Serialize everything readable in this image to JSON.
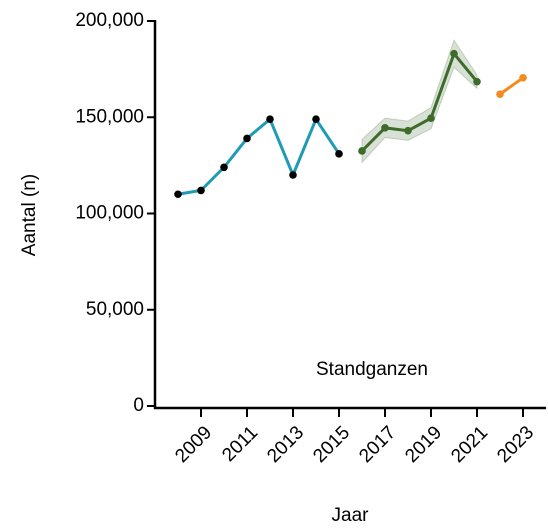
{
  "chart_data": {
    "type": "line",
    "xlabel": "Jaar",
    "ylabel": "Aantal (n)",
    "annotation": "Standganzen",
    "xlim": [
      2007,
      2024
    ],
    "xticks": [
      2009,
      2011,
      2013,
      2015,
      2017,
      2019,
      2021,
      2023
    ],
    "ylim": [
      0,
      200000
    ],
    "yticks": [
      0,
      {
        "value": 50000,
        "label": "50,000"
      },
      {
        "value": 100000,
        "label": "100,000"
      },
      {
        "value": 150000,
        "label": "150,000"
      },
      {
        "value": 200000,
        "label": "200,000"
      }
    ],
    "series": [
      {
        "color": "#1f9bb3",
        "marker_color": "#000000",
        "x": [
          2008,
          2009,
          2010,
          2011,
          2012,
          2013,
          2014,
          2015
        ],
        "values": [
          110000,
          112000,
          124000,
          139000,
          149000,
          120000,
          149000,
          131000
        ]
      },
      {
        "color": "#3e6b2c",
        "marker_color": "#3e6b2c",
        "x": [
          2016,
          2017,
          2018,
          2019,
          2020,
          2021
        ],
        "values": [
          132500,
          144500,
          143000,
          149500,
          183000,
          168500
        ],
        "lower": [
          126500,
          139500,
          138000,
          144000,
          176000,
          165000
        ],
        "upper": [
          138500,
          149500,
          148000,
          155000,
          190000,
          172000
        ]
      },
      {
        "color": "#f58a1f",
        "marker_color": "#f58a1f",
        "x": [
          2022,
          2023
        ],
        "values": [
          162000,
          170500
        ]
      }
    ]
  }
}
